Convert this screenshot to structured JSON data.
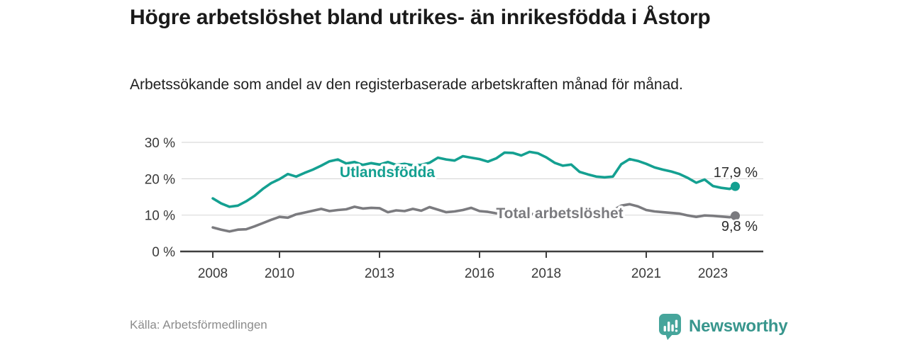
{
  "header": {
    "title": "Högre arbetslöshet bland utrikes- än inrikesfödda i Åstorp",
    "subtitle": "Arbetssökande som andel av den registerbaserade arbetskraften månad för månad."
  },
  "footer": {
    "source": "Källa: Arbetsförmedlingen",
    "brand": "Newsworthy",
    "brand_icon": "newsworthy-bar-chart-bubble-icon"
  },
  "colors": {
    "background": "#ffffff",
    "accent_teal": "#14a091",
    "series_gray": "#7b7b7f",
    "brand_teal": "#46a59b",
    "brand_text_teal": "#38968d",
    "gridline": "#d9d9d9",
    "axis": "#3f3f3f",
    "title_text": "#1a1a1a",
    "source_text": "#8c8c8c"
  },
  "chart_data": {
    "type": "line",
    "title": "Högre arbetslöshet bland utrikes- än inrikesfödda i Åstorp",
    "xlabel": "",
    "ylabel": "",
    "grid": true,
    "legend_position": "inline",
    "ylim": [
      0,
      30
    ],
    "xlim_years": [
      2008.0,
      2023.9
    ],
    "x": [
      2008.0,
      2008.25,
      2008.5,
      2008.75,
      2009.0,
      2009.25,
      2009.5,
      2009.75,
      2010.0,
      2010.25,
      2010.5,
      2010.75,
      2011.0,
      2011.25,
      2011.5,
      2011.75,
      2012.0,
      2012.25,
      2012.5,
      2012.75,
      2013.0,
      2013.25,
      2013.5,
      2013.75,
      2014.0,
      2014.25,
      2014.5,
      2014.75,
      2015.0,
      2015.25,
      2015.5,
      2015.75,
      2016.0,
      2016.25,
      2016.5,
      2016.75,
      2017.0,
      2017.25,
      2017.5,
      2017.75,
      2018.0,
      2018.25,
      2018.5,
      2018.75,
      2019.0,
      2019.25,
      2019.5,
      2019.75,
      2020.0,
      2020.25,
      2020.5,
      2020.75,
      2021.0,
      2021.25,
      2021.5,
      2021.75,
      2022.0,
      2022.25,
      2022.5,
      2022.75,
      2023.0,
      2023.25,
      2023.5,
      2023.67
    ],
    "series": [
      {
        "name": "Utlandsfödda",
        "color": "#14a091",
        "end_label": "17,9 %",
        "end_value": 17.9,
        "values": [
          14.6,
          13.2,
          12.3,
          12.6,
          13.8,
          15.3,
          17.2,
          18.8,
          19.9,
          21.3,
          20.6,
          21.6,
          22.5,
          23.6,
          24.8,
          25.3,
          24.2,
          24.6,
          23.8,
          24.3,
          23.9,
          24.6,
          23.8,
          24.1,
          23.7,
          23.8,
          24.4,
          25.8,
          25.3,
          25.0,
          26.2,
          25.8,
          25.4,
          24.7,
          25.6,
          27.2,
          27.1,
          26.4,
          27.4,
          27.0,
          25.9,
          24.4,
          23.6,
          23.9,
          21.9,
          21.2,
          20.6,
          20.4,
          20.6,
          24.0,
          25.4,
          24.9,
          24.1,
          23.1,
          22.5,
          22.0,
          21.3,
          20.2,
          18.9,
          19.8,
          18.0,
          17.5,
          17.2,
          17.9
        ]
      },
      {
        "name": "Total arbetslöshet",
        "color": "#7b7b7f",
        "end_label": "9,8 %",
        "end_value": 9.8,
        "values": [
          6.6,
          6.0,
          5.5,
          6.0,
          6.1,
          6.9,
          7.8,
          8.7,
          9.5,
          9.3,
          10.2,
          10.7,
          11.2,
          11.7,
          11.1,
          11.4,
          11.6,
          12.3,
          11.8,
          12.0,
          11.9,
          10.8,
          11.3,
          11.1,
          11.7,
          11.2,
          12.2,
          11.5,
          10.8,
          11.0,
          11.4,
          12.0,
          11.1,
          10.9,
          10.5,
          10.4,
          10.6,
          10.4,
          10.3,
          10.2,
          10.3,
          10.2,
          10.1,
          10.2,
          10.3,
          10.4,
          10.6,
          10.8,
          11.3,
          12.6,
          13.0,
          12.4,
          11.4,
          11.0,
          10.8,
          10.6,
          10.4,
          9.9,
          9.5,
          9.9,
          9.8,
          9.6,
          9.4,
          9.8
        ]
      }
    ],
    "yticks": [
      {
        "value": 0,
        "label": "0 %"
      },
      {
        "value": 10,
        "label": "10 %"
      },
      {
        "value": 20,
        "label": "20 %"
      },
      {
        "value": 30,
        "label": "30 %"
      }
    ],
    "xticks": [
      {
        "year": 2008,
        "label": "2008"
      },
      {
        "year": 2010,
        "label": "2010"
      },
      {
        "year": 2013,
        "label": "2013"
      },
      {
        "year": 2016,
        "label": "2016"
      },
      {
        "year": 2018,
        "label": "2018"
      },
      {
        "year": 2021,
        "label": "2021"
      },
      {
        "year": 2023,
        "label": "2023"
      }
    ]
  }
}
